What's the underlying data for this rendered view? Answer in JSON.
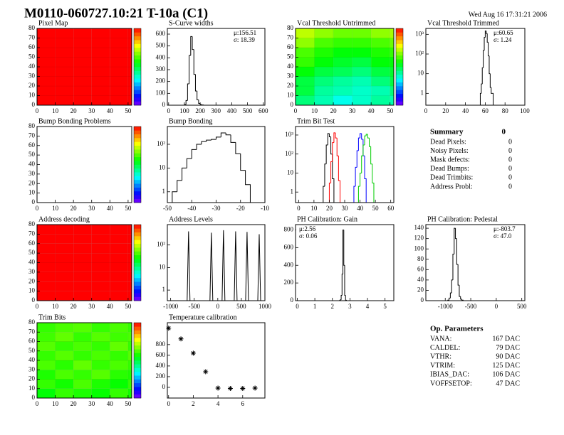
{
  "header": {
    "title": "M0110-060727.10:21 T-10a (C1)",
    "date": "Wed Aug 16 17:31:21 2006"
  },
  "chart_data": [
    {
      "type": "heatmap",
      "title": "Pixel Map",
      "xbins": [
        0,
        10,
        20,
        30,
        40,
        50,
        52
      ],
      "ybins": [
        0,
        10,
        20,
        30,
        40,
        50,
        60,
        70,
        80
      ],
      "z": [
        [
          1,
          1,
          1,
          1,
          1,
          1
        ],
        [
          1,
          1,
          1,
          1,
          1,
          1
        ],
        [
          1,
          1,
          1,
          1,
          1,
          1
        ],
        [
          1,
          1,
          1,
          1,
          1,
          1
        ],
        [
          1,
          1,
          1,
          1,
          1,
          1
        ],
        [
          1,
          1,
          1,
          1,
          1,
          1
        ],
        [
          1,
          1,
          1,
          1,
          1,
          1
        ],
        [
          1,
          1,
          1,
          1,
          1,
          1
        ]
      ],
      "zlim": [
        0,
        1
      ],
      "xlim": [
        0,
        52
      ],
      "ylim": [
        0,
        80
      ],
      "xticks": [
        0,
        10,
        20,
        30,
        40,
        50
      ],
      "yticks": [
        0,
        10,
        20,
        30,
        40,
        50,
        60,
        70,
        80
      ]
    },
    {
      "type": "histogram",
      "title": "S-Curve widths",
      "bins": [
        100,
        110,
        120,
        130,
        140,
        150,
        160,
        170,
        180,
        190,
        200,
        210,
        220
      ],
      "values": [
        5,
        40,
        180,
        420,
        580,
        470,
        260,
        120,
        45,
        15,
        5,
        2
      ],
      "xlim": [
        -8,
        610
      ],
      "ylim": [
        0,
        648
      ],
      "xticks": [
        0,
        100,
        200,
        300,
        400,
        500,
        600
      ],
      "yticks": [
        0,
        100,
        200,
        300,
        400,
        500,
        600
      ],
      "stats": [
        "μ:156.51",
        "σ: 18.39"
      ]
    },
    {
      "type": "heatmap",
      "title": "Vcal Threshold Untrimmed",
      "xbins": [
        0,
        10,
        20,
        30,
        40,
        50,
        52
      ],
      "ybins": [
        0,
        10,
        20,
        30,
        40,
        50,
        60,
        70,
        80
      ],
      "z": [
        [
          0.45,
          0.4,
          0.35,
          0.38,
          0.42,
          0.4
        ],
        [
          0.5,
          0.42,
          0.4,
          0.38,
          0.4,
          0.45
        ],
        [
          0.5,
          0.45,
          0.42,
          0.4,
          0.45,
          0.5
        ],
        [
          0.55,
          0.5,
          0.48,
          0.45,
          0.5,
          0.52
        ],
        [
          0.6,
          0.55,
          0.52,
          0.5,
          0.55,
          0.55
        ],
        [
          0.62,
          0.58,
          0.55,
          0.55,
          0.58,
          0.6
        ],
        [
          0.68,
          0.62,
          0.6,
          0.6,
          0.62,
          0.65
        ],
        [
          0.72,
          0.68,
          0.65,
          0.65,
          0.68,
          0.7
        ]
      ],
      "zlim": [
        0,
        1
      ],
      "xlim": [
        0,
        52
      ],
      "ylim": [
        0,
        80
      ],
      "xticks": [
        0,
        10,
        20,
        30,
        40,
        50
      ],
      "yticks": [
        0,
        10,
        20,
        30,
        40,
        50,
        60,
        70,
        80
      ]
    },
    {
      "type": "histogram",
      "title": "Vcal Threshold Trimmed",
      "log_y": true,
      "bins": [
        55,
        56,
        57,
        58,
        59,
        60,
        61,
        62,
        63,
        64,
        65,
        66,
        67,
        68
      ],
      "values": [
        1,
        3,
        20,
        150,
        700,
        1500,
        1100,
        400,
        80,
        10,
        2,
        1,
        1
      ],
      "xlim": [
        0,
        100
      ],
      "ylim": [
        0.25,
        2000
      ],
      "xticks": [
        0,
        20,
        40,
        60,
        80,
        100
      ],
      "yticks": [
        1,
        10,
        {
          "value": 100,
          "label": "10²"
        },
        {
          "value": 1000,
          "label": "10³"
        }
      ],
      "stats": [
        "μ:60.65",
        "σ: 1.24"
      ]
    },
    {
      "type": "heatmap",
      "title": "Bump Bonding Problems",
      "zlim": [
        0,
        1
      ],
      "xlim": [
        0,
        52
      ],
      "ylim": [
        0,
        80
      ],
      "xticks": [
        0,
        10,
        20,
        30,
        40,
        50
      ],
      "yticks": [
        0,
        10,
        20,
        30,
        40,
        50,
        60,
        70,
        80
      ]
    },
    {
      "type": "histogram",
      "title": "Bump Bonding",
      "log_y": true,
      "bins": [
        -48,
        -46,
        -44,
        -42,
        -40,
        -38,
        -36,
        -34,
        -32,
        -30,
        -28,
        -26,
        -24,
        -22,
        -20,
        -18,
        -16
      ],
      "values": [
        1,
        3,
        10,
        25,
        60,
        100,
        130,
        150,
        160,
        200,
        300,
        250,
        120,
        40,
        8,
        2
      ],
      "xlim": [
        -50,
        -10
      ],
      "ylim": [
        0.35,
        560
      ],
      "xticks": [
        -50,
        -40,
        -30,
        -20,
        -10
      ],
      "yticks": [
        1,
        10,
        {
          "value": 100,
          "label": "10²"
        }
      ]
    },
    {
      "type": "histogram",
      "title": "Trim Bit Test",
      "log_y": true,
      "xlim": [
        -2,
        62
      ],
      "ylim": [
        0.28,
        2800
      ],
      "xticks": [
        0,
        10,
        20,
        30,
        40,
        50,
        60
      ],
      "yticks": [
        1,
        10,
        {
          "value": 100,
          "label": "10²"
        },
        {
          "value": 1000,
          "label": "10³"
        }
      ],
      "series": [
        {
          "color": "#000000",
          "bins": [
            16,
            17,
            18,
            19,
            20,
            21,
            22,
            23
          ],
          "values": [
            2,
            30,
            300,
            1200,
            800,
            100,
            5
          ]
        },
        {
          "color": "#ff0000",
          "bins": [
            20,
            21,
            22,
            23,
            24,
            25,
            26,
            27
          ],
          "values": [
            3,
            40,
            400,
            1300,
            700,
            80,
            4
          ]
        },
        {
          "color": "#0000ff",
          "bins": [
            36,
            37,
            38,
            39,
            40,
            41,
            42,
            43,
            44
          ],
          "values": [
            2,
            20,
            150,
            700,
            1200,
            600,
            80,
            5
          ]
        },
        {
          "color": "#00cc00",
          "bins": [
            39,
            40,
            41,
            42,
            43,
            44,
            45,
            46,
            47,
            48,
            49
          ],
          "values": [
            2,
            10,
            80,
            300,
            900,
            1100,
            700,
            250,
            30,
            3
          ]
        }
      ]
    },
    {
      "type": "heatmap",
      "title": "Address decoding",
      "xbins": [
        0,
        10,
        20,
        30,
        40,
        50,
        52
      ],
      "ybins": [
        0,
        10,
        20,
        30,
        40,
        50,
        60,
        70,
        80
      ],
      "z": [
        [
          1,
          1,
          1,
          1,
          1,
          1
        ],
        [
          1,
          1,
          1,
          1,
          1,
          1
        ],
        [
          1,
          1,
          1,
          1,
          1,
          1
        ],
        [
          1,
          1,
          1,
          1,
          1,
          1
        ],
        [
          1,
          1,
          1,
          1,
          1,
          1
        ],
        [
          1,
          1,
          1,
          1,
          1,
          1
        ],
        [
          1,
          1,
          1,
          1,
          1,
          1
        ],
        [
          1,
          1,
          1,
          1,
          1,
          1
        ]
      ],
      "zlim": [
        0,
        1
      ],
      "xlim": [
        0,
        52
      ],
      "ylim": [
        0,
        80
      ],
      "xticks": [
        0,
        10,
        20,
        30,
        40,
        50
      ],
      "yticks": [
        0,
        10,
        20,
        30,
        40,
        50,
        60,
        70,
        80
      ]
    },
    {
      "type": "spikes",
      "title": "Address Levels",
      "log_y": true,
      "x": [
        -620,
        -136,
        121,
        379,
        621,
        879
      ],
      "values": [
        400,
        350,
        450,
        400,
        380,
        300
      ],
      "xlim": [
        -1070,
        1000
      ],
      "ylim": [
        0.34,
        800
      ],
      "xticks": [
        -1000,
        -500,
        0,
        500,
        1000
      ],
      "yticks": [
        1,
        10,
        {
          "value": 100,
          "label": "10²"
        }
      ]
    },
    {
      "type": "histogram",
      "title": "PH Calibration: Gain",
      "bins": [
        2.4,
        2.45,
        2.5,
        2.55,
        2.6,
        2.65,
        2.7,
        2.75,
        2.8
      ],
      "values": [
        2,
        10,
        60,
        300,
        800,
        400,
        60,
        5
      ],
      "xlim": [
        -0.1,
        5.5
      ],
      "ylim": [
        0,
        860
      ],
      "xticks": [
        0,
        1,
        2,
        3,
        4,
        5
      ],
      "yticks": [
        0,
        200,
        400,
        600,
        800
      ],
      "stats": [
        "μ:2.56",
        "σ: 0.06"
      ],
      "stats_corner": "top-left"
    },
    {
      "type": "histogram",
      "title": "PH Calibration: Pedestal",
      "bins": [
        -950,
        -925,
        -900,
        -875,
        -850,
        -825,
        -800,
        -775,
        -750,
        -725,
        -700,
        -675,
        -650
      ],
      "values": [
        1,
        5,
        15,
        40,
        90,
        140,
        120,
        70,
        30,
        8,
        3,
        1
      ],
      "xlim": [
        -1380,
        560
      ],
      "ylim": [
        0,
        147
      ],
      "xticks": [
        -1000,
        -500,
        0,
        500
      ],
      "yticks": [
        0,
        20,
        40,
        60,
        80,
        100,
        120,
        140
      ],
      "stats": [
        "μ:-803.7",
        "σ: 47.0"
      ]
    },
    {
      "type": "heatmap",
      "title": "Trim Bits",
      "xbins": [
        0,
        10,
        20,
        30,
        40,
        50,
        52
      ],
      "ybins": [
        0,
        10,
        20,
        30,
        40,
        50,
        60,
        70,
        80
      ],
      "z": [
        [
          0.55,
          0.6,
          0.58,
          0.56,
          0.6,
          0.57
        ],
        [
          0.6,
          0.57,
          0.62,
          0.58,
          0.56,
          0.6
        ],
        [
          0.58,
          0.62,
          0.6,
          0.63,
          0.59,
          0.58
        ],
        [
          0.62,
          0.59,
          0.64,
          0.6,
          0.62,
          0.6
        ],
        [
          0.6,
          0.63,
          0.6,
          0.62,
          0.6,
          0.63
        ],
        [
          0.63,
          0.6,
          0.62,
          0.6,
          0.64,
          0.6
        ],
        [
          0.61,
          0.64,
          0.6,
          0.63,
          0.61,
          0.62
        ],
        [
          0.6,
          0.62,
          0.63,
          0.6,
          0.62,
          0.6
        ]
      ],
      "zlim": [
        0,
        1
      ],
      "xlim": [
        0,
        52
      ],
      "ylim": [
        0,
        80
      ],
      "xticks": [
        0,
        10,
        20,
        30,
        40,
        50
      ],
      "yticks": [
        0,
        10,
        20,
        30,
        40,
        50,
        60,
        70,
        80
      ]
    },
    {
      "type": "scatter",
      "title": "Temperature calibration",
      "x": [
        0,
        1,
        2,
        3,
        4,
        5,
        6,
        7
      ],
      "values": [
        1107,
        907,
        640,
        293,
        -13,
        -20,
        -20,
        -13
      ],
      "xlim": [
        -0.1,
        7.8
      ],
      "ylim": [
        -200,
        1210
      ],
      "xticks": [
        0,
        2,
        4,
        6
      ],
      "yticks": [
        0,
        200,
        400,
        600,
        800
      ]
    }
  ],
  "summary": {
    "title": "Summary",
    "total": 0,
    "rows": [
      {
        "label": "Dead Pixels:",
        "value": 0
      },
      {
        "label": "Noisy Pixels:",
        "value": 0
      },
      {
        "label": "Mask defects:",
        "value": 0
      },
      {
        "label": "Dead Bumps:",
        "value": 0
      },
      {
        "label": "Dead Trimbits:",
        "value": 0
      },
      {
        "label": "Address Probl:",
        "value": 0
      }
    ]
  },
  "op_parameters": {
    "title": "Op. Parameters",
    "rows": [
      {
        "label": "VANA:",
        "value": "167 DAC"
      },
      {
        "label": "CALDEL:",
        "value": "79 DAC"
      },
      {
        "label": "VTHR:",
        "value": "90 DAC"
      },
      {
        "label": "VTRIM:",
        "value": "125 DAC"
      },
      {
        "label": "IBIAS_DAC:",
        "value": "106 DAC"
      },
      {
        "label": "VOFFSETOP:",
        "value": "47 DAC"
      }
    ]
  }
}
